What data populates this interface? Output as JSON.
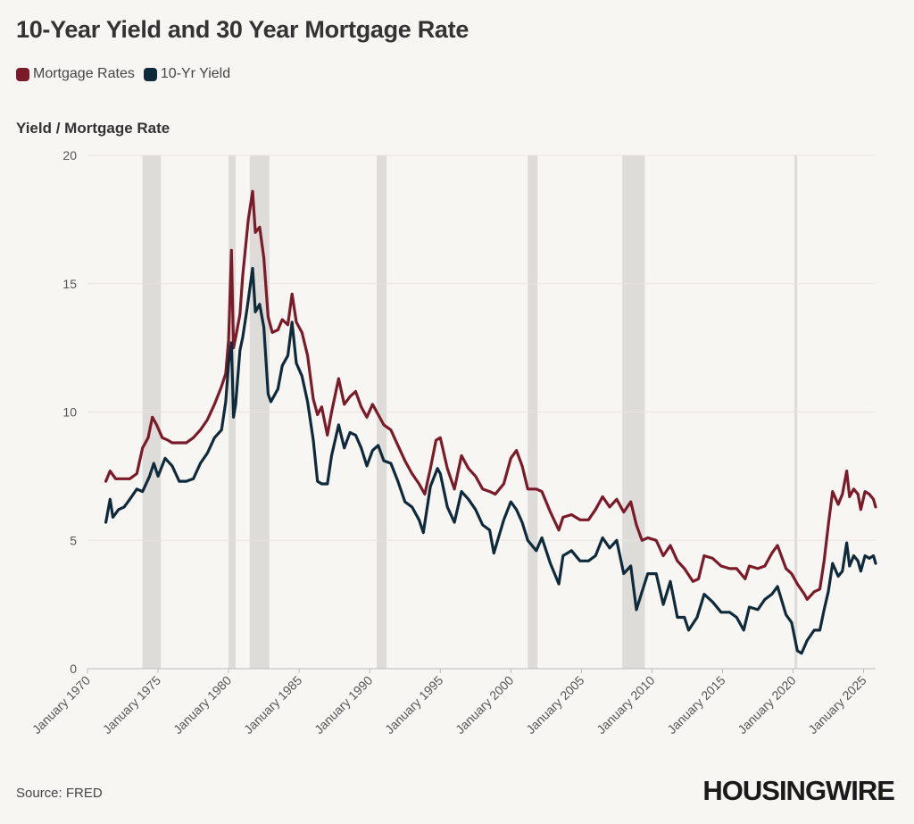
{
  "title": "10-Year Yield and 30 Year Mortgage Rate",
  "source": "Source: FRED",
  "brand": "HOUSINGWIRE",
  "colors": {
    "mortgage": "#7b1a28",
    "yield": "#0e2a3b",
    "recession": "#dedcd9",
    "grid": "#e7e4e0",
    "axis": "#bbbbbb"
  },
  "chart_data": {
    "type": "line",
    "title": "10-Year Yield and 30 Year Mortgage Rate",
    "ylabel": "Yield / Mortgage Rate",
    "xlabel": "",
    "xlim": [
      1970.0,
      2025.85
    ],
    "ylim": [
      0,
      20
    ],
    "yticks": [
      0,
      5,
      10,
      15,
      20
    ],
    "xticks": [
      {
        "value": 1970,
        "label": "January 1970"
      },
      {
        "value": 1975,
        "label": "January 1975"
      },
      {
        "value": 1980,
        "label": "January 1980"
      },
      {
        "value": 1985,
        "label": "January 1985"
      },
      {
        "value": 1990,
        "label": "January 1990"
      },
      {
        "value": 1995,
        "label": "January 1995"
      },
      {
        "value": 2000,
        "label": "January 2000"
      },
      {
        "value": 2005,
        "label": "January 2005"
      },
      {
        "value": 2010,
        "label": "January 2010"
      },
      {
        "value": 2015,
        "label": "January 2015"
      },
      {
        "value": 2020,
        "label": "January 2020"
      },
      {
        "value": 2025,
        "label": "January 2025"
      }
    ],
    "recessions": [
      [
        1973.9,
        1975.2
      ],
      [
        1980.0,
        1980.5
      ],
      [
        1981.5,
        1982.9
      ],
      [
        1990.5,
        1991.2
      ],
      [
        2001.2,
        2001.9
      ],
      [
        2007.9,
        2009.5
      ],
      [
        2020.1,
        2020.3
      ]
    ],
    "series": [
      {
        "name": "Mortgage Rates",
        "x": [
          1971.3,
          1971.6,
          1972.0,
          1972.5,
          1973.0,
          1973.5,
          1973.9,
          1974.3,
          1974.6,
          1974.9,
          1975.3,
          1975.7,
          1976.0,
          1976.5,
          1977.0,
          1977.5,
          1978.0,
          1978.5,
          1979.0,
          1979.5,
          1979.8,
          1980.0,
          1980.2,
          1980.35,
          1980.5,
          1980.8,
          1981.0,
          1981.4,
          1981.7,
          1981.9,
          1982.2,
          1982.5,
          1982.8,
          1983.1,
          1983.5,
          1983.8,
          1984.2,
          1984.5,
          1984.8,
          1985.2,
          1985.6,
          1986.0,
          1986.3,
          1986.6,
          1987.0,
          1987.3,
          1987.8,
          1988.2,
          1988.6,
          1989.0,
          1989.4,
          1989.8,
          1990.2,
          1990.6,
          1991.0,
          1991.5,
          1992.0,
          1992.5,
          1993.0,
          1993.5,
          1993.9,
          1994.3,
          1994.7,
          1995.0,
          1995.5,
          1996.0,
          1996.5,
          1997.0,
          1997.5,
          1998.0,
          1998.5,
          1998.9,
          1999.5,
          2000.0,
          2000.4,
          2000.8,
          2001.2,
          2001.8,
          2002.2,
          2002.8,
          2003.4,
          2003.7,
          2004.3,
          2004.9,
          2005.5,
          2006.0,
          2006.5,
          2007.0,
          2007.5,
          2008.0,
          2008.5,
          2008.9,
          2009.3,
          2009.7,
          2010.3,
          2010.8,
          2011.3,
          2011.8,
          2012.3,
          2012.9,
          2013.3,
          2013.7,
          2014.3,
          2014.9,
          2015.5,
          2016.0,
          2016.6,
          2016.9,
          2017.5,
          2018.0,
          2018.5,
          2018.9,
          2019.5,
          2019.9,
          2020.3,
          2020.8,
          2021.0,
          2021.5,
          2021.9,
          2022.2,
          2022.5,
          2022.8,
          2023.2,
          2023.5,
          2023.8,
          2024.0,
          2024.3,
          2024.6,
          2024.8,
          2025.1,
          2025.4,
          2025.7,
          2025.85
        ],
        "values": [
          7.3,
          7.7,
          7.4,
          7.4,
          7.4,
          7.6,
          8.6,
          9.0,
          9.8,
          9.5,
          9.0,
          8.9,
          8.8,
          8.8,
          8.8,
          9.0,
          9.3,
          9.7,
          10.3,
          11.0,
          11.5,
          12.8,
          16.3,
          12.5,
          12.9,
          13.8,
          15.3,
          17.5,
          18.6,
          17.0,
          17.2,
          16.0,
          13.7,
          13.1,
          13.2,
          13.6,
          13.4,
          14.6,
          13.5,
          13.1,
          12.2,
          10.5,
          9.9,
          10.2,
          9.1,
          10.0,
          11.3,
          10.3,
          10.6,
          10.8,
          10.2,
          9.8,
          10.3,
          9.9,
          9.5,
          9.3,
          8.7,
          8.1,
          7.6,
          7.2,
          6.8,
          7.8,
          8.9,
          9.0,
          7.8,
          7.0,
          8.3,
          7.8,
          7.5,
          7.0,
          6.9,
          6.8,
          7.2,
          8.2,
          8.5,
          7.9,
          7.0,
          7.0,
          6.9,
          6.1,
          5.4,
          5.9,
          6.0,
          5.8,
          5.8,
          6.2,
          6.7,
          6.3,
          6.6,
          6.1,
          6.5,
          5.6,
          5.0,
          5.1,
          5.0,
          4.4,
          4.8,
          4.2,
          3.9,
          3.4,
          3.5,
          4.4,
          4.3,
          4.0,
          3.9,
          3.9,
          3.5,
          4.0,
          3.9,
          4.0,
          4.5,
          4.8,
          3.9,
          3.7,
          3.3,
          2.9,
          2.7,
          3.0,
          3.1,
          4.2,
          5.6,
          6.9,
          6.4,
          6.8,
          7.7,
          6.7,
          7.0,
          6.8,
          6.2,
          6.9,
          6.8,
          6.6,
          6.3
        ]
      },
      {
        "name": "10-Yr Yield",
        "x": [
          1971.3,
          1971.6,
          1971.8,
          1972.2,
          1972.6,
          1973.0,
          1973.5,
          1973.9,
          1974.4,
          1974.7,
          1975.0,
          1975.5,
          1976.0,
          1976.5,
          1977.0,
          1977.5,
          1978.0,
          1978.5,
          1979.0,
          1979.5,
          1979.8,
          1980.0,
          1980.2,
          1980.35,
          1980.5,
          1980.8,
          1981.0,
          1981.3,
          1981.7,
          1981.9,
          1982.2,
          1982.5,
          1982.8,
          1983.0,
          1983.5,
          1983.8,
          1984.2,
          1984.5,
          1984.8,
          1985.2,
          1985.6,
          1986.0,
          1986.3,
          1986.6,
          1987.0,
          1987.3,
          1987.8,
          1988.2,
          1988.6,
          1989.0,
          1989.4,
          1989.8,
          1990.2,
          1990.6,
          1991.0,
          1991.5,
          1992.0,
          1992.5,
          1993.0,
          1993.5,
          1993.8,
          1994.3,
          1994.8,
          1995.0,
          1995.5,
          1996.0,
          1996.5,
          1997.0,
          1997.5,
          1998.0,
          1998.5,
          1998.8,
          1999.5,
          2000.0,
          2000.4,
          2000.8,
          2001.2,
          2001.8,
          2002.2,
          2002.8,
          2003.4,
          2003.7,
          2004.3,
          2004.9,
          2005.5,
          2006.0,
          2006.5,
          2007.0,
          2007.5,
          2008.0,
          2008.5,
          2008.9,
          2009.3,
          2009.7,
          2010.3,
          2010.8,
          2011.3,
          2011.8,
          2012.3,
          2012.6,
          2013.2,
          2013.7,
          2014.3,
          2014.9,
          2015.5,
          2016.0,
          2016.5,
          2016.9,
          2017.5,
          2018.0,
          2018.5,
          2018.9,
          2019.5,
          2019.9,
          2020.3,
          2020.6,
          2021.0,
          2021.5,
          2021.9,
          2022.2,
          2022.5,
          2022.8,
          2023.2,
          2023.5,
          2023.8,
          2024.0,
          2024.3,
          2024.6,
          2024.8,
          2025.1,
          2025.4,
          2025.7,
          2025.85
        ],
        "values": [
          5.7,
          6.6,
          5.9,
          6.2,
          6.3,
          6.6,
          7.0,
          6.9,
          7.5,
          8.0,
          7.5,
          8.2,
          7.9,
          7.3,
          7.3,
          7.4,
          8.0,
          8.4,
          9.0,
          9.3,
          10.4,
          11.9,
          12.7,
          9.8,
          10.3,
          12.4,
          12.9,
          14.0,
          15.6,
          13.9,
          14.2,
          13.3,
          10.7,
          10.4,
          10.9,
          11.8,
          12.2,
          13.5,
          11.9,
          11.4,
          10.4,
          8.9,
          7.3,
          7.2,
          7.2,
          8.3,
          9.5,
          8.6,
          9.2,
          9.1,
          8.6,
          7.9,
          8.5,
          8.7,
          8.1,
          8.0,
          7.3,
          6.5,
          6.3,
          5.8,
          5.3,
          7.1,
          7.8,
          7.6,
          6.3,
          5.7,
          6.9,
          6.6,
          6.2,
          5.6,
          5.4,
          4.5,
          5.8,
          6.5,
          6.2,
          5.7,
          5.0,
          4.6,
          5.1,
          4.1,
          3.3,
          4.4,
          4.6,
          4.2,
          4.2,
          4.4,
          5.1,
          4.7,
          5.0,
          3.7,
          4.0,
          2.3,
          3.0,
          3.7,
          3.7,
          2.5,
          3.4,
          2.0,
          2.0,
          1.5,
          2.0,
          2.9,
          2.6,
          2.2,
          2.2,
          2.0,
          1.5,
          2.4,
          2.3,
          2.7,
          2.9,
          3.2,
          2.1,
          1.8,
          0.7,
          0.6,
          1.1,
          1.5,
          1.5,
          2.3,
          3.0,
          4.1,
          3.6,
          3.8,
          4.9,
          4.0,
          4.4,
          4.2,
          3.8,
          4.4,
          4.3,
          4.4,
          4.1
        ]
      }
    ]
  }
}
